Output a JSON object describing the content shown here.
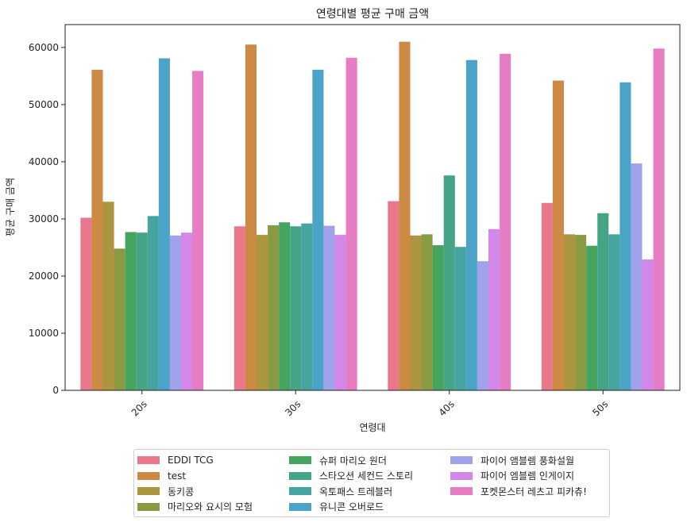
{
  "chart_data": {
    "type": "bar",
    "title": "연령대별 평균 구매 금액",
    "xlabel": "연령대",
    "ylabel": "평균 구매 금액",
    "categories": [
      "20s",
      "30s",
      "40s",
      "50s"
    ],
    "ylim": [
      0,
      64000
    ],
    "yticks": [
      0,
      10000,
      20000,
      30000,
      40000,
      50000,
      60000
    ],
    "ytick_labels": [
      "0",
      "10000",
      "20000",
      "30000",
      "40000",
      "50000",
      "60000"
    ],
    "grid": false,
    "legend_placement": "bottom-center",
    "series": [
      {
        "name": "EDDI TCG",
        "color": "#e8788a",
        "values": [
          30200,
          28700,
          33100,
          32800
        ]
      },
      {
        "name": "test",
        "color": "#cc8a45",
        "values": [
          56100,
          60500,
          61000,
          54200
        ]
      },
      {
        "name": "동키콩",
        "color": "#ab9540",
        "values": [
          33000,
          27200,
          27100,
          27300
        ]
      },
      {
        "name": "마리오와 요시의 모험",
        "color": "#8a9a42",
        "values": [
          24800,
          28900,
          27300,
          27200
        ]
      },
      {
        "name": "슈퍼 마리오 원더",
        "color": "#45a55e",
        "values": [
          27700,
          29400,
          25400,
          25300
        ]
      },
      {
        "name": "스타오션 세컨드 스토리",
        "color": "#45a486",
        "values": [
          27600,
          28700,
          37600,
          31000
        ]
      },
      {
        "name": "옥토패스 트레블러",
        "color": "#45a4a0",
        "values": [
          30500,
          29200,
          25100,
          27300
        ]
      },
      {
        "name": "유니콘 오버로드",
        "color": "#4ba3c8",
        "values": [
          58100,
          56100,
          57800,
          53900
        ]
      },
      {
        "name": "파이어 앰블렘 풍화설월",
        "color": "#a0a2ec",
        "values": [
          27100,
          28800,
          22600,
          39700
        ]
      },
      {
        "name": "파이어 엠블렘 인게이지",
        "color": "#d387e8",
        "values": [
          27600,
          27200,
          28200,
          22900
        ]
      },
      {
        "name": "포켓몬스터 레츠고 피카츄!",
        "color": "#e57cc4",
        "values": [
          55900,
          58200,
          58900,
          59800
        ]
      }
    ]
  }
}
